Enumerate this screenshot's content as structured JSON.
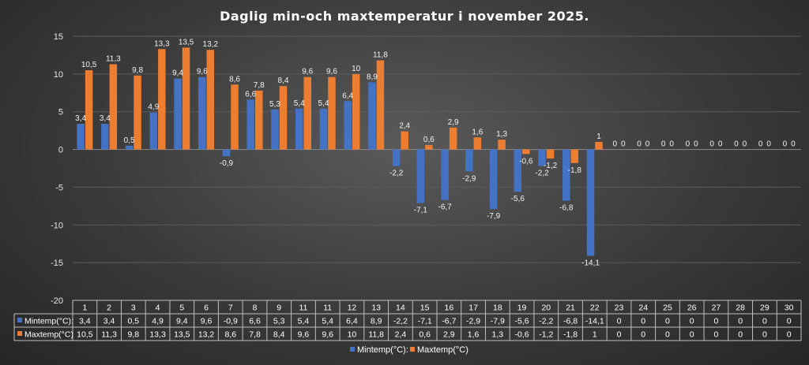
{
  "chart_data": {
    "type": "bar",
    "title": "Daglig min-och maxtemperatur i november 2025.",
    "categories": [
      "1",
      "2",
      "3",
      "4",
      "5",
      "6",
      "7",
      "8",
      "9",
      "11",
      "11",
      "12",
      "13",
      "14",
      "15",
      "16",
      "17",
      "18",
      "19",
      "20",
      "21",
      "22",
      "23",
      "24",
      "25",
      "26",
      "27",
      "28",
      "29",
      "30"
    ],
    "series": [
      {
        "name": "Mintemp(°C):",
        "color": "#4472c4",
        "values": [
          3.4,
          3.4,
          0.5,
          4.9,
          9.4,
          9.6,
          -0.9,
          6.6,
          5.3,
          5.4,
          5.4,
          6.4,
          8.9,
          -2.2,
          -7.1,
          -6.7,
          -2.9,
          -7.9,
          -5.6,
          -2.2,
          -6.8,
          -14.1,
          0,
          0,
          0,
          0,
          0,
          0,
          0,
          0
        ],
        "labels": [
          "3,4",
          "3,4",
          "0,5",
          "4,9",
          "9,4",
          "9,6",
          "-0,9",
          "6,6",
          "5,3",
          "5,4",
          "5,4",
          "6,4",
          "8,9",
          "-2,2",
          "-7,1",
          "-6,7",
          "-2,9",
          "-7,9",
          "-5,6",
          "-2,2",
          "-6,8",
          "-14,1",
          "0",
          "0",
          "0",
          "0",
          "0",
          "0",
          "0",
          "0"
        ]
      },
      {
        "name": "Maxtemp(°C)",
        "color": "#ed7d31",
        "values": [
          10.5,
          11.3,
          9.8,
          13.3,
          13.5,
          13.2,
          8.6,
          7.8,
          8.4,
          9.6,
          9.6,
          10,
          11.8,
          2.4,
          0.6,
          2.9,
          1.6,
          1.3,
          -0.6,
          -1.2,
          -1.8,
          1,
          0,
          0,
          0,
          0,
          0,
          0,
          0,
          0
        ],
        "labels": [
          "10,5",
          "11,3",
          "9,8",
          "13,3",
          "13,5",
          "13,2",
          "8,6",
          "7,8",
          "8,4",
          "9,6",
          "9,6",
          "10",
          "11,8",
          "2,4",
          "0,6",
          "2,9",
          "1,6",
          "1,3",
          "-0,6",
          "-1,2",
          "-1,8",
          "1",
          "0",
          "0",
          "0",
          "0",
          "0",
          "0",
          "0",
          "0"
        ]
      }
    ],
    "yticks": [
      "15",
      "10",
      "5",
      "0",
      "-5",
      "-10",
      "-15",
      "-20"
    ],
    "ylim": [
      -20,
      15
    ],
    "grid": true,
    "legend_position": "bottom",
    "data_table": true
  }
}
